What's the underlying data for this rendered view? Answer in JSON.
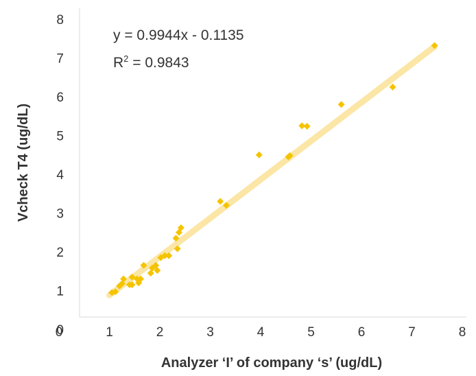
{
  "chart_data": {
    "type": "scatter",
    "xlabel": "Analyzer ‘I’ of company ‘s’ (ug/dL)",
    "ylabel": "Vcheck T4 (ug/dL)",
    "xlim": [
      0,
      8
    ],
    "ylim": [
      0,
      8
    ],
    "x_ticks": [
      "0",
      "1",
      "2",
      "3",
      "4",
      "5",
      "6",
      "7",
      "8"
    ],
    "y_ticks": [
      "0",
      "1",
      "2",
      "3",
      "4",
      "5",
      "6",
      "7",
      "8"
    ],
    "grid": false,
    "legend": "none",
    "annotations": {
      "equation": "y = 0.9944x - 0.1135",
      "r_squared_prefix": "R",
      "r_squared_exp": "2",
      "r_squared_value": " = 0.9843"
    },
    "trendline": {
      "slope": 0.9944,
      "intercept": -0.1135,
      "x_range": [
        1.0,
        7.45
      ],
      "color": "#FBE6A6"
    },
    "marker_color": "#F5C400",
    "points": [
      {
        "x": 1.05,
        "y": 0.95
      },
      {
        "x": 1.12,
        "y": 0.97
      },
      {
        "x": 1.2,
        "y": 1.12
      },
      {
        "x": 1.25,
        "y": 1.18
      },
      {
        "x": 1.28,
        "y": 1.3
      },
      {
        "x": 1.4,
        "y": 1.15
      },
      {
        "x": 1.45,
        "y": 1.15
      },
      {
        "x": 1.45,
        "y": 1.35
      },
      {
        "x": 1.55,
        "y": 1.3
      },
      {
        "x": 1.58,
        "y": 1.2
      },
      {
        "x": 1.62,
        "y": 1.3
      },
      {
        "x": 1.68,
        "y": 1.65
      },
      {
        "x": 1.82,
        "y": 1.45
      },
      {
        "x": 1.85,
        "y": 1.58
      },
      {
        "x": 1.92,
        "y": 1.65
      },
      {
        "x": 1.95,
        "y": 1.52
      },
      {
        "x": 2.02,
        "y": 1.85
      },
      {
        "x": 2.1,
        "y": 1.9
      },
      {
        "x": 2.18,
        "y": 1.9
      },
      {
        "x": 2.32,
        "y": 2.35
      },
      {
        "x": 2.35,
        "y": 2.08
      },
      {
        "x": 2.38,
        "y": 2.5
      },
      {
        "x": 2.42,
        "y": 2.62
      },
      {
        "x": 3.2,
        "y": 3.3
      },
      {
        "x": 3.32,
        "y": 3.2
      },
      {
        "x": 3.97,
        "y": 4.5
      },
      {
        "x": 4.55,
        "y": 4.45
      },
      {
        "x": 4.58,
        "y": 4.48
      },
      {
        "x": 4.82,
        "y": 5.25
      },
      {
        "x": 4.92,
        "y": 5.24
      },
      {
        "x": 5.6,
        "y": 5.8
      },
      {
        "x": 6.62,
        "y": 6.25
      },
      {
        "x": 7.45,
        "y": 7.32
      }
    ]
  }
}
